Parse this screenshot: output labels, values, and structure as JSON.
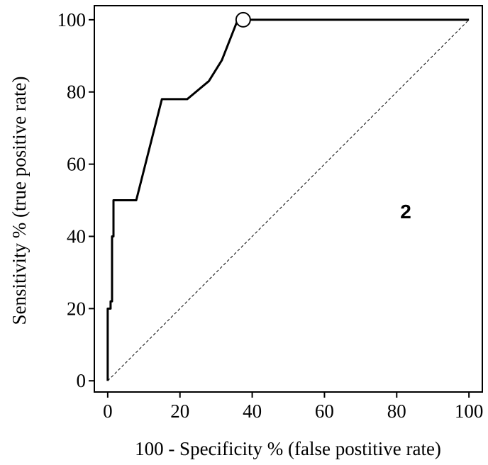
{
  "chart_data": {
    "type": "line",
    "x_label": "100 - Specificity % (false postitive rate)",
    "y_label": "Sensitivity % (true positive rate)",
    "x": [
      0,
      0,
      0.8,
      0.8,
      1.2,
      1.2,
      1.6,
      1.6,
      7.9,
      15,
      22,
      28,
      31.6,
      36,
      100
    ],
    "series": [
      {
        "color": "#000000",
        "values": [
          0,
          20,
          20,
          22,
          22,
          40,
          40,
          50,
          50,
          78,
          78,
          83,
          88.8,
          100,
          100
        ]
      }
    ],
    "highlight": {
      "x": 37.5,
      "y": 100
    },
    "reference_line": {
      "x": [
        0,
        100
      ],
      "y": [
        0,
        100
      ]
    },
    "annotations": [
      {
        "text": "2"
      }
    ],
    "xlim": [
      -3.7,
      103.7
    ],
    "ylim": [
      -3.1,
      103.9
    ],
    "xticks": [
      0,
      20,
      40,
      60,
      80,
      100
    ],
    "yticks": [
      0,
      20,
      40,
      60,
      80,
      100
    ]
  }
}
